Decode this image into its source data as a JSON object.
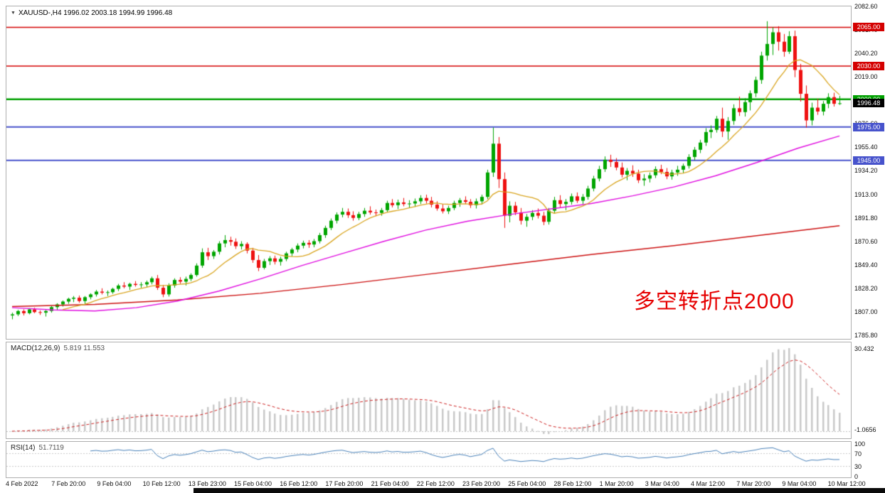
{
  "window": {
    "dropdown_icon": "▼"
  },
  "chart_data": {
    "type": "candlestick",
    "symbol": "XAUUSD-",
    "timeframe": "H4",
    "title": "XAUUSD-,H4 1996.02 2003.18 1994.99 1996.48",
    "open": "1996.02",
    "high": "2003.18",
    "low": "1994.99",
    "close": "1996.48",
    "annotation": {
      "text": "多空转折点2000",
      "color": "#e60000"
    },
    "scale": {
      "top_price": 2082.6,
      "bottom_price": 1785.8
    },
    "price_axis_labels": [
      "2082.60",
      "2061.40",
      "2040.20",
      "2019.00",
      "1997.80",
      "1976.60",
      "1955.40",
      "1934.20",
      "1913.00",
      "1891.80",
      "1870.60",
      "1849.40",
      "1828.20",
      "1807.00",
      "1785.80"
    ],
    "time_axis_labels": [
      "4 Feb 2022",
      "7 Feb 20:00",
      "9 Feb 04:00",
      "10 Feb 12:00",
      "13 Feb 23:00",
      "15 Feb 04:00",
      "16 Feb 12:00",
      "17 Feb 20:00",
      "21 Feb 04:00",
      "22 Feb 12:00",
      "23 Feb 20:00",
      "25 Feb 04:00",
      "28 Feb 12:00",
      "1 Mar 20:00",
      "3 Mar 04:00",
      "4 Mar 12:00",
      "7 Mar 20:00",
      "9 Mar 04:00",
      "10 Mar 12:00"
    ],
    "horizontal_lines": [
      {
        "price": 2065.0,
        "label": "2065.00",
        "color": "#d40000",
        "width": 1.5
      },
      {
        "price": 2030.0,
        "label": "2030.00",
        "color": "#d40000",
        "width": 1.5
      },
      {
        "price": 2000.0,
        "label": "2000.00",
        "color": "#00a000",
        "width": 2.5
      },
      {
        "price": 1975.0,
        "label": "1975.00",
        "color": "#4753cc",
        "width": 2
      },
      {
        "price": 1945.0,
        "label": "1945.00",
        "color": "#4753cc",
        "width": 2
      }
    ],
    "current_price_label": {
      "value": 1996.48,
      "text": "1996.48",
      "bg": "#000000",
      "fg": "#ffffff"
    },
    "colors": {
      "bull": "#00a500",
      "bear": "#ee1111",
      "panel_border": "#aeaeae"
    },
    "moving_averages": {
      "fast": {
        "type": "sma",
        "period": 10,
        "color": "#d9a520"
      },
      "medium": {
        "color": "#e010e0",
        "points": [
          [
            0,
            1812
          ],
          [
            0.05,
            1810
          ],
          [
            0.1,
            1809
          ],
          [
            0.15,
            1812
          ],
          [
            0.2,
            1818
          ],
          [
            0.25,
            1827
          ],
          [
            0.3,
            1838
          ],
          [
            0.35,
            1850
          ],
          [
            0.4,
            1861
          ],
          [
            0.45,
            1872
          ],
          [
            0.5,
            1882
          ],
          [
            0.55,
            1890
          ],
          [
            0.6,
            1896
          ],
          [
            0.65,
            1901
          ],
          [
            0.7,
            1906
          ],
          [
            0.75,
            1913
          ],
          [
            0.8,
            1921
          ],
          [
            0.85,
            1931
          ],
          [
            0.9,
            1943
          ],
          [
            0.95,
            1956
          ],
          [
            1,
            1967
          ]
        ]
      },
      "slow": {
        "color": "#cc1111",
        "points": [
          [
            0,
            1813
          ],
          [
            0.1,
            1815
          ],
          [
            0.2,
            1819
          ],
          [
            0.3,
            1825
          ],
          [
            0.4,
            1833
          ],
          [
            0.5,
            1842
          ],
          [
            0.6,
            1851
          ],
          [
            0.7,
            1860
          ],
          [
            0.8,
            1868
          ],
          [
            0.9,
            1877
          ],
          [
            1,
            1886
          ]
        ]
      }
    },
    "candles": [
      [
        1805.0,
        1807.5,
        1801.5,
        1806.0
      ],
      [
        1806.0,
        1810.0,
        1804.5,
        1809.0
      ],
      [
        1809.0,
        1810.5,
        1805.0,
        1807.0
      ],
      [
        1807.0,
        1811.5,
        1806.0,
        1810.5
      ],
      [
        1810.5,
        1812.0,
        1807.0,
        1808.0
      ],
      [
        1808.0,
        1809.5,
        1805.5,
        1807.5
      ],
      [
        1807.5,
        1810.0,
        1804.0,
        1809.0
      ],
      [
        1809.0,
        1813.5,
        1807.5,
        1812.5
      ],
      [
        1812.5,
        1816.0,
        1810.0,
        1815.0
      ],
      [
        1815.0,
        1818.5,
        1813.0,
        1817.5
      ],
      [
        1817.5,
        1821.0,
        1815.5,
        1820.0
      ],
      [
        1820.0,
        1822.5,
        1817.0,
        1821.0
      ],
      [
        1821.0,
        1823.0,
        1816.5,
        1818.0
      ],
      [
        1818.0,
        1822.5,
        1815.0,
        1821.5
      ],
      [
        1821.5,
        1825.0,
        1819.5,
        1824.0
      ],
      [
        1824.0,
        1828.0,
        1822.0,
        1826.5
      ],
      [
        1826.5,
        1829.5,
        1824.0,
        1825.5
      ],
      [
        1825.5,
        1827.5,
        1822.5,
        1826.0
      ],
      [
        1826.0,
        1830.0,
        1824.5,
        1829.0
      ],
      [
        1829.0,
        1833.5,
        1827.0,
        1832.0
      ],
      [
        1832.0,
        1835.0,
        1829.5,
        1831.0
      ],
      [
        1831.0,
        1834.5,
        1828.0,
        1833.5
      ],
      [
        1833.5,
        1836.0,
        1831.0,
        1832.5
      ],
      [
        1832.5,
        1835.0,
        1830.0,
        1833.0
      ],
      [
        1833.0,
        1836.5,
        1830.5,
        1835.0
      ],
      [
        1835.0,
        1840.0,
        1833.0,
        1838.5
      ],
      [
        1838.5,
        1841.5,
        1828.0,
        1830.0
      ],
      [
        1830.0,
        1832.5,
        1821.5,
        1824.0
      ],
      [
        1824.0,
        1834.0,
        1822.0,
        1832.0
      ],
      [
        1832.0,
        1838.5,
        1830.0,
        1837.0
      ],
      [
        1837.0,
        1839.5,
        1833.5,
        1835.5
      ],
      [
        1835.5,
        1840.0,
        1832.0,
        1838.0
      ],
      [
        1838.0,
        1843.0,
        1836.0,
        1841.5
      ],
      [
        1841.5,
        1852.0,
        1840.0,
        1850.0
      ],
      [
        1850.0,
        1865.5,
        1848.0,
        1862.0
      ],
      [
        1862.0,
        1866.0,
        1855.0,
        1858.5
      ],
      [
        1858.5,
        1864.0,
        1856.0,
        1862.5
      ],
      [
        1862.5,
        1872.0,
        1860.0,
        1870.0
      ],
      [
        1870.0,
        1877.5,
        1866.5,
        1873.0
      ],
      [
        1873.0,
        1876.0,
        1868.0,
        1871.5
      ],
      [
        1871.5,
        1874.5,
        1865.0,
        1867.5
      ],
      [
        1867.5,
        1872.0,
        1864.5,
        1869.5
      ],
      [
        1869.5,
        1871.0,
        1861.0,
        1863.5
      ],
      [
        1863.5,
        1866.0,
        1852.5,
        1855.0
      ],
      [
        1855.0,
        1859.5,
        1845.0,
        1848.0
      ],
      [
        1848.0,
        1856.0,
        1846.5,
        1854.0
      ],
      [
        1854.0,
        1858.5,
        1850.5,
        1856.5
      ],
      [
        1856.5,
        1859.0,
        1851.0,
        1853.5
      ],
      [
        1853.5,
        1858.0,
        1850.0,
        1856.0
      ],
      [
        1856.0,
        1862.5,
        1854.0,
        1861.0
      ],
      [
        1861.0,
        1866.0,
        1858.5,
        1864.5
      ],
      [
        1864.5,
        1870.0,
        1862.0,
        1868.0
      ],
      [
        1868.0,
        1872.5,
        1865.5,
        1870.5
      ],
      [
        1870.5,
        1873.0,
        1866.0,
        1869.0
      ],
      [
        1869.0,
        1874.0,
        1866.5,
        1872.0
      ],
      [
        1872.0,
        1879.5,
        1870.0,
        1877.5
      ],
      [
        1877.5,
        1886.0,
        1875.0,
        1884.0
      ],
      [
        1884.0,
        1892.5,
        1882.0,
        1890.5
      ],
      [
        1890.5,
        1898.0,
        1888.0,
        1896.0
      ],
      [
        1896.0,
        1902.0,
        1893.5,
        1898.5
      ],
      [
        1898.5,
        1901.5,
        1893.0,
        1895.5
      ],
      [
        1895.5,
        1899.0,
        1890.5,
        1893.0
      ],
      [
        1893.0,
        1898.5,
        1891.0,
        1896.5
      ],
      [
        1896.5,
        1902.0,
        1894.0,
        1899.5
      ],
      [
        1899.5,
        1903.5,
        1896.0,
        1898.0
      ],
      [
        1898.0,
        1900.5,
        1894.5,
        1897.5
      ],
      [
        1897.5,
        1902.0,
        1895.0,
        1900.0
      ],
      [
        1900.0,
        1908.5,
        1898.0,
        1906.5
      ],
      [
        1906.5,
        1910.0,
        1902.5,
        1904.5
      ],
      [
        1904.5,
        1909.5,
        1901.0,
        1907.0
      ],
      [
        1907.0,
        1911.0,
        1903.5,
        1905.5
      ],
      [
        1905.5,
        1909.0,
        1902.0,
        1906.0
      ],
      [
        1906.0,
        1910.5,
        1903.0,
        1908.0
      ],
      [
        1908.0,
        1913.5,
        1905.5,
        1911.0
      ],
      [
        1911.0,
        1914.0,
        1906.0,
        1908.5
      ],
      [
        1908.5,
        1912.0,
        1902.5,
        1905.0
      ],
      [
        1905.0,
        1908.0,
        1899.5,
        1901.5
      ],
      [
        1901.5,
        1905.5,
        1897.0,
        1899.0
      ],
      [
        1899.0,
        1904.0,
        1896.5,
        1902.0
      ],
      [
        1902.0,
        1908.5,
        1900.0,
        1906.5
      ],
      [
        1906.5,
        1911.0,
        1903.0,
        1909.0
      ],
      [
        1909.0,
        1912.5,
        1905.5,
        1907.5
      ],
      [
        1907.5,
        1910.0,
        1902.0,
        1904.5
      ],
      [
        1904.5,
        1910.5,
        1901.5,
        1908.0
      ],
      [
        1908.0,
        1914.0,
        1905.0,
        1912.0
      ],
      [
        1912.0,
        1936.5,
        1910.0,
        1934.0
      ],
      [
        1934.0,
        1974.5,
        1930.0,
        1960.0
      ],
      [
        1960.0,
        1966.0,
        1920.0,
        1928.0
      ],
      [
        1928.0,
        1934.0,
        1884.0,
        1895.0
      ],
      [
        1895.0,
        1908.0,
        1889.0,
        1904.0
      ],
      [
        1904.0,
        1907.5,
        1895.5,
        1898.0
      ],
      [
        1898.0,
        1902.0,
        1887.0,
        1890.5
      ],
      [
        1890.5,
        1896.5,
        1885.0,
        1894.0
      ],
      [
        1894.0,
        1900.0,
        1891.0,
        1897.5
      ],
      [
        1897.5,
        1901.5,
        1892.5,
        1895.0
      ],
      [
        1895.0,
        1898.5,
        1886.5,
        1889.5
      ],
      [
        1889.5,
        1902.0,
        1887.0,
        1899.5
      ],
      [
        1899.5,
        1912.0,
        1897.0,
        1909.0
      ],
      [
        1909.0,
        1913.5,
        1902.5,
        1905.5
      ],
      [
        1905.5,
        1910.0,
        1900.0,
        1907.5
      ],
      [
        1907.5,
        1915.0,
        1905.0,
        1912.5
      ],
      [
        1912.5,
        1916.0,
        1906.5,
        1908.5
      ],
      [
        1908.5,
        1914.5,
        1905.5,
        1912.0
      ],
      [
        1912.0,
        1922.0,
        1909.5,
        1919.5
      ],
      [
        1919.5,
        1931.0,
        1917.0,
        1928.5
      ],
      [
        1928.5,
        1940.0,
        1926.0,
        1937.0
      ],
      [
        1937.0,
        1948.5,
        1934.5,
        1945.5
      ],
      [
        1945.5,
        1950.0,
        1939.0,
        1943.5
      ],
      [
        1943.5,
        1947.0,
        1936.0,
        1938.5
      ],
      [
        1938.5,
        1943.0,
        1929.5,
        1932.0
      ],
      [
        1932.0,
        1938.0,
        1927.0,
        1935.5
      ],
      [
        1935.5,
        1940.5,
        1930.0,
        1933.0
      ],
      [
        1933.0,
        1936.5,
        1924.5,
        1927.0
      ],
      [
        1927.0,
        1932.5,
        1922.0,
        1928.5
      ],
      [
        1928.5,
        1934.0,
        1925.0,
        1931.5
      ],
      [
        1931.5,
        1939.5,
        1929.0,
        1937.0
      ],
      [
        1937.0,
        1941.0,
        1932.5,
        1934.5
      ],
      [
        1934.5,
        1938.0,
        1928.0,
        1930.5
      ],
      [
        1930.5,
        1936.5,
        1927.5,
        1934.0
      ],
      [
        1934.0,
        1940.0,
        1931.0,
        1936.5
      ],
      [
        1936.5,
        1942.0,
        1933.5,
        1940.0
      ],
      [
        1940.0,
        1950.5,
        1937.5,
        1948.0
      ],
      [
        1948.0,
        1957.0,
        1945.0,
        1954.5
      ],
      [
        1954.5,
        1963.5,
        1951.5,
        1961.0
      ],
      [
        1961.0,
        1974.0,
        1958.0,
        1970.5
      ],
      [
        1970.5,
        1976.5,
        1965.0,
        1972.5
      ],
      [
        1972.5,
        1985.0,
        1970.0,
        1982.5
      ],
      [
        1982.5,
        1992.5,
        1966.0,
        1971.0
      ],
      [
        1971.0,
        1984.0,
        1963.5,
        1980.5
      ],
      [
        1980.5,
        1995.5,
        1977.0,
        1992.0
      ],
      [
        1992.0,
        2002.5,
        1985.0,
        1988.5
      ],
      [
        1988.5,
        2001.0,
        1984.5,
        1997.5
      ],
      [
        1997.5,
        2008.0,
        1990.0,
        2005.5
      ],
      [
        2005.5,
        2020.5,
        2002.0,
        2017.5
      ],
      [
        2017.5,
        2043.0,
        2014.0,
        2039.5
      ],
      [
        2039.5,
        2070.5,
        2035.0,
        2050.0
      ],
      [
        2050.0,
        2065.0,
        2040.0,
        2060.5
      ],
      [
        2060.5,
        2066.0,
        2044.0,
        2052.0
      ],
      [
        2052.0,
        2059.0,
        2038.5,
        2043.0
      ],
      [
        2043.0,
        2061.5,
        2041.0,
        2057.0
      ],
      [
        2057.0,
        2062.0,
        2020.0,
        2026.5
      ],
      [
        2026.5,
        2032.0,
        1998.0,
        2005.0
      ],
      [
        2005.0,
        2012.5,
        1974.5,
        1981.0
      ],
      [
        1981.0,
        1997.0,
        1976.5,
        1992.5
      ],
      [
        1992.5,
        2000.5,
        1986.0,
        1989.0
      ],
      [
        1989.0,
        1998.5,
        1985.5,
        1996.0
      ],
      [
        1996.0,
        2005.5,
        1992.0,
        2002.0
      ],
      [
        2002.0,
        2006.0,
        1993.5,
        1996.0
      ],
      [
        1996.02,
        2003.18,
        1994.99,
        1996.48
      ]
    ],
    "macd": {
      "label": "MACD(12,26,9)",
      "values": "5.819 11.553",
      "fast": 12,
      "slow": 26,
      "signal_period": 9,
      "axis_max": "30.432",
      "axis_min": "-1.0656",
      "hist_color": "#c9c9c9",
      "signal_color": "#cc2020"
    },
    "rsi": {
      "label": "RSI(14)",
      "value": "51.7119",
      "period": 14,
      "axis_labels": [
        "100",
        "70",
        "30",
        "0"
      ],
      "levels": [
        70,
        30
      ],
      "line_color": "#4880b8"
    }
  }
}
